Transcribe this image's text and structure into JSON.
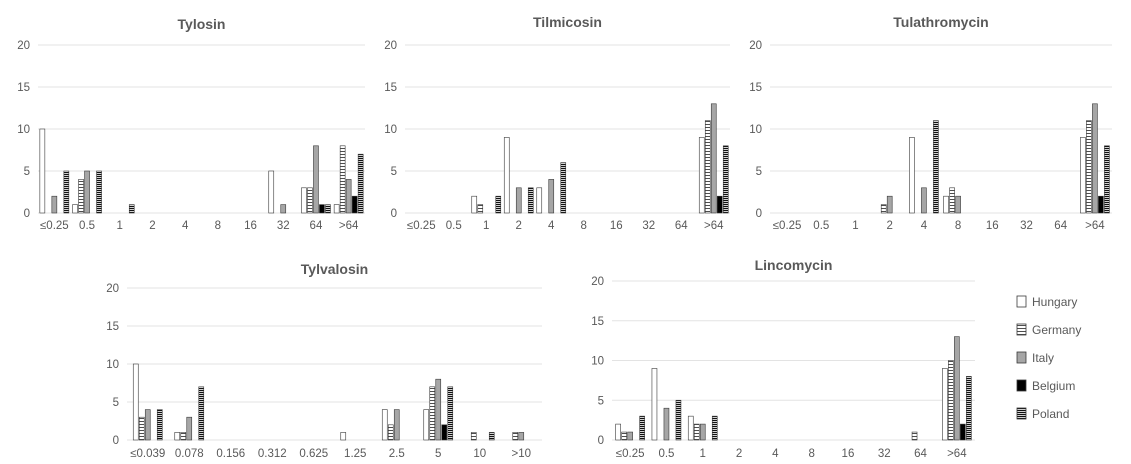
{
  "chart_data": [
    {
      "type": "bar",
      "title": "Tylosin",
      "ylim": [
        0,
        20
      ],
      "yticks": [
        "0",
        "5",
        "10",
        "15",
        "20"
      ],
      "categories": [
        "≤0.25",
        "0.5",
        "1",
        "2",
        "4",
        "8",
        "16",
        "32",
        "64",
        ">64"
      ],
      "series": [
        {
          "name": "Hungary",
          "values": [
            10,
            1,
            0,
            0,
            0,
            0,
            0,
            5,
            3,
            1
          ]
        },
        {
          "name": "Germany",
          "values": [
            0,
            4,
            0,
            0,
            0,
            0,
            0,
            0,
            3,
            8
          ]
        },
        {
          "name": "Italy",
          "values": [
            2,
            5,
            0,
            0,
            0,
            0,
            0,
            1,
            8,
            4
          ]
        },
        {
          "name": "Belgium",
          "values": [
            0,
            0,
            0,
            0,
            0,
            0,
            0,
            0,
            1,
            2
          ]
        },
        {
          "name": "Poland",
          "values": [
            5,
            5,
            1,
            0,
            0,
            0,
            0,
            0,
            1,
            7
          ]
        }
      ]
    },
    {
      "type": "bar",
      "title": "Tilmicosin",
      "ylim": [
        0,
        20
      ],
      "yticks": [
        "0",
        "5",
        "10",
        "15",
        "20"
      ],
      "categories": [
        "≤0.25",
        "0.5",
        "1",
        "2",
        "4",
        "8",
        "16",
        "32",
        "64",
        ">64"
      ],
      "series": [
        {
          "name": "Hungary",
          "values": [
            0,
            0,
            2,
            9,
            3,
            0,
            0,
            0,
            0,
            9
          ]
        },
        {
          "name": "Germany",
          "values": [
            0,
            0,
            1,
            0,
            0,
            0,
            0,
            0,
            0,
            11
          ]
        },
        {
          "name": "Italy",
          "values": [
            0,
            0,
            0,
            3,
            4,
            0,
            0,
            0,
            0,
            13
          ]
        },
        {
          "name": "Belgium",
          "values": [
            0,
            0,
            0,
            0,
            0,
            0,
            0,
            0,
            0,
            2
          ]
        },
        {
          "name": "Poland",
          "values": [
            0,
            0,
            2,
            3,
            6,
            0,
            0,
            0,
            0,
            8
          ]
        }
      ]
    },
    {
      "type": "bar",
      "title": "Tulathromycin",
      "ylim": [
        0,
        20
      ],
      "yticks": [
        "0",
        "5",
        "10",
        "15",
        "20"
      ],
      "categories": [
        "≤0.25",
        "0.5",
        "1",
        "2",
        "4",
        "8",
        "16",
        "32",
        "64",
        ">64"
      ],
      "series": [
        {
          "name": "Hungary",
          "values": [
            0,
            0,
            0,
            0,
            9,
            2,
            0,
            0,
            0,
            9
          ]
        },
        {
          "name": "Germany",
          "values": [
            0,
            0,
            0,
            1,
            0,
            3,
            0,
            0,
            0,
            11
          ]
        },
        {
          "name": "Italy",
          "values": [
            0,
            0,
            0,
            2,
            3,
            2,
            0,
            0,
            0,
            13
          ]
        },
        {
          "name": "Belgium",
          "values": [
            0,
            0,
            0,
            0,
            0,
            0,
            0,
            0,
            0,
            2
          ]
        },
        {
          "name": "Poland",
          "values": [
            0,
            0,
            0,
            0,
            11,
            0,
            0,
            0,
            0,
            8
          ]
        }
      ]
    },
    {
      "type": "bar",
      "title": "Tylvalosin",
      "ylim": [
        0,
        20
      ],
      "yticks": [
        "0",
        "5",
        "10",
        "15",
        "20"
      ],
      "categories": [
        "≤0.039",
        "0.078",
        "0.156",
        "0.312",
        "0.625",
        "1.25",
        "2.5",
        "5",
        "10",
        ">10"
      ],
      "series": [
        {
          "name": "Hungary",
          "values": [
            10,
            1,
            0,
            0,
            0,
            1,
            4,
            4,
            0,
            0
          ]
        },
        {
          "name": "Germany",
          "values": [
            3,
            1,
            0,
            0,
            0,
            0,
            2,
            7,
            1,
            1
          ]
        },
        {
          "name": "Italy",
          "values": [
            4,
            3,
            0,
            0,
            0,
            0,
            4,
            8,
            0,
            1
          ]
        },
        {
          "name": "Belgium",
          "values": [
            0,
            0,
            0,
            0,
            0,
            0,
            0,
            2,
            0,
            0
          ]
        },
        {
          "name": "Poland",
          "values": [
            4,
            7,
            0,
            0,
            0,
            0,
            0,
            7,
            1,
            0
          ]
        }
      ]
    },
    {
      "type": "bar",
      "title": "Lincomycin",
      "ylim": [
        0,
        20
      ],
      "yticks": [
        "0",
        "5",
        "10",
        "15",
        "20"
      ],
      "categories": [
        "≤0.25",
        "0.5",
        "1",
        "2",
        "4",
        "8",
        "16",
        "32",
        "64",
        ">64"
      ],
      "series": [
        {
          "name": "Hungary",
          "values": [
            2,
            9,
            3,
            0,
            0,
            0,
            0,
            0,
            0,
            9
          ]
        },
        {
          "name": "Germany",
          "values": [
            1,
            0,
            2,
            0,
            0,
            0,
            0,
            0,
            1,
            10
          ]
        },
        {
          "name": "Italy",
          "values": [
            1,
            4,
            2,
            0,
            0,
            0,
            0,
            0,
            0,
            13
          ]
        },
        {
          "name": "Belgium",
          "values": [
            0,
            0,
            0,
            0,
            0,
            0,
            0,
            0,
            0,
            2
          ]
        },
        {
          "name": "Poland",
          "values": [
            3,
            5,
            3,
            0,
            0,
            0,
            0,
            0,
            0,
            8
          ]
        }
      ]
    }
  ],
  "legend": {
    "placement": "right",
    "items": [
      {
        "name": "Hungary",
        "style": "white"
      },
      {
        "name": "Germany",
        "style": "horizontal-stripes"
      },
      {
        "name": "Italy",
        "style": "gray"
      },
      {
        "name": "Belgium",
        "style": "black"
      },
      {
        "name": "Poland",
        "style": "dense-stripes"
      }
    ]
  },
  "colors": {
    "text": "#595959",
    "grid": "#e3e3e3",
    "bar_outline": "#3a3a3a",
    "italy_fill": "#a6a6a6",
    "belgium_fill": "#000000"
  }
}
